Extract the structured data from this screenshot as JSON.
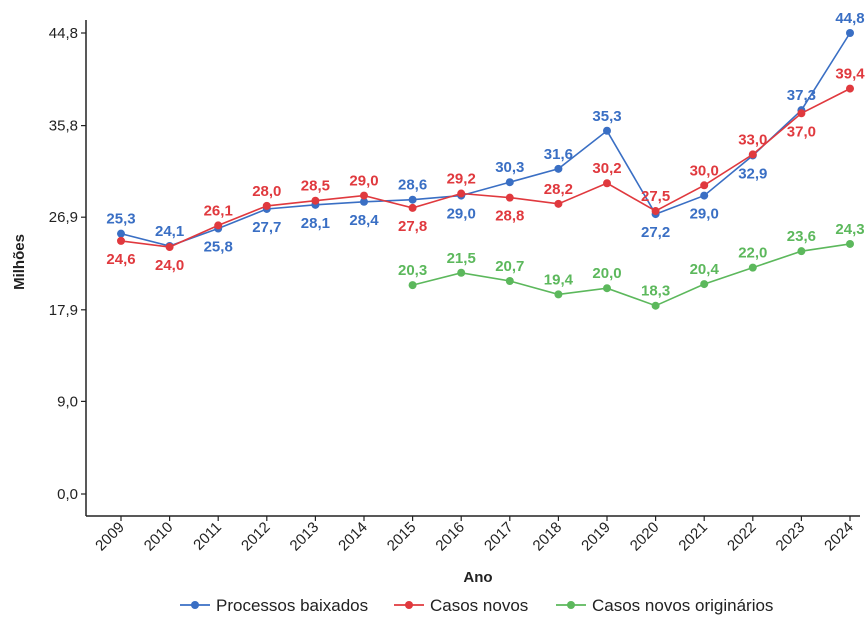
{
  "chart_data": {
    "type": "line",
    "xlabel": "Ano",
    "ylabel": "Milhões",
    "categories": [
      "2009",
      "2010",
      "2011",
      "2012",
      "2013",
      "2014",
      "2015",
      "2016",
      "2017",
      "2018",
      "2019",
      "2020",
      "2021",
      "2022",
      "2023",
      "2024"
    ],
    "yticks": [
      "0,0",
      "9,0",
      "17,9",
      "26,9",
      "35,8",
      "44,8"
    ],
    "ytick_values": [
      0.0,
      9.0,
      17.9,
      26.9,
      35.8,
      44.8
    ],
    "ylim": [
      0,
      44.8
    ],
    "grid": false,
    "legend_position": "bottom",
    "series": [
      {
        "name": "Processos baixados",
        "color": "#3a6fc4",
        "values": [
          25.3,
          24.1,
          25.8,
          27.7,
          28.1,
          28.4,
          28.6,
          29.0,
          30.3,
          31.6,
          35.3,
          27.2,
          29.0,
          32.9,
          37.3,
          44.8
        ],
        "labels": [
          "25,3",
          "24,1",
          "25,8",
          "27,7",
          "28,1",
          "28,4",
          "28,6",
          "29,0",
          "30,3",
          "31,6",
          "35,3",
          "27,2",
          "29,0",
          "32,9",
          "37,3",
          "44,8"
        ]
      },
      {
        "name": "Casos novos",
        "color": "#e0393e",
        "values": [
          24.6,
          24.0,
          26.1,
          28.0,
          28.5,
          29.0,
          27.8,
          29.2,
          28.8,
          28.2,
          30.2,
          27.5,
          30.0,
          33.0,
          37.0,
          39.4
        ],
        "labels": [
          "24,6",
          "24,0",
          "26,1",
          "28,0",
          "28,5",
          "29,0",
          "27,8",
          "29,2",
          "28,8",
          "28,2",
          "30,2",
          "27,5",
          "30,0",
          "33,0",
          "37,0",
          "39,4"
        ]
      },
      {
        "name": "Casos novos originários",
        "color": "#5cb85c",
        "values": [
          null,
          null,
          null,
          null,
          null,
          null,
          20.3,
          21.5,
          20.7,
          19.4,
          20.0,
          18.3,
          20.4,
          22.0,
          23.6,
          24.3
        ],
        "labels": [
          null,
          null,
          null,
          null,
          null,
          null,
          "20,3",
          "21,5",
          "20,7",
          "19,4",
          "20,0",
          "18,3",
          "20,4",
          "22,0",
          "23,6",
          "24,3"
        ]
      }
    ]
  }
}
